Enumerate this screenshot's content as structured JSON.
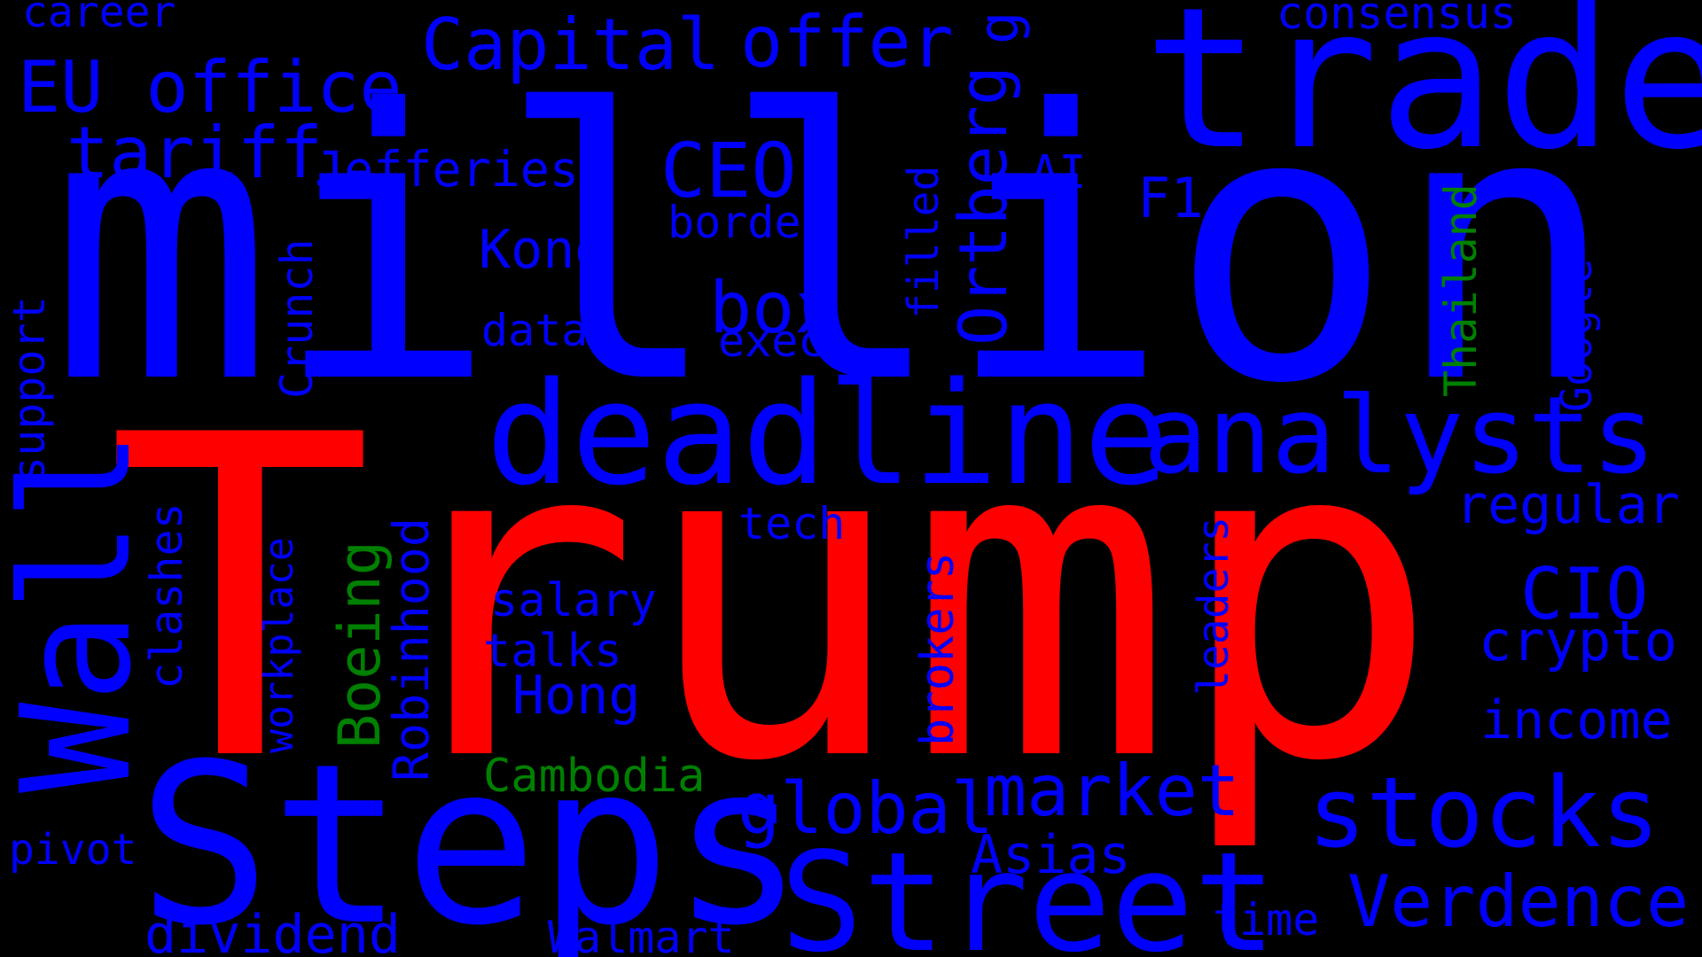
{
  "colors": {
    "background": "#000000",
    "blue": "#0000ff",
    "red": "#ff0000",
    "green": "#008000"
  },
  "words": [
    {
      "key": "trump",
      "text": "Trump",
      "color": "red"
    },
    {
      "key": "million",
      "text": "million",
      "color": "blue"
    },
    {
      "key": "trade",
      "text": "trade",
      "color": "blue"
    },
    {
      "key": "steps",
      "text": "Steps",
      "color": "blue"
    },
    {
      "key": "deadline",
      "text": "deadline",
      "color": "blue"
    },
    {
      "key": "street",
      "text": "Street",
      "color": "blue"
    },
    {
      "key": "analysts",
      "text": "analysts",
      "color": "blue"
    },
    {
      "key": "wall",
      "text": "Wall",
      "color": "blue"
    },
    {
      "key": "stocks",
      "text": "stocks",
      "color": "blue"
    },
    {
      "key": "capital",
      "text": "Capital",
      "color": "blue"
    },
    {
      "key": "offer",
      "text": "offer",
      "color": "blue"
    },
    {
      "key": "eu-office",
      "text": "EU office",
      "color": "blue"
    },
    {
      "key": "tariff",
      "text": "tariff",
      "color": "blue"
    },
    {
      "key": "ceo",
      "text": "CEO",
      "color": "blue"
    },
    {
      "key": "box",
      "text": "box",
      "color": "blue"
    },
    {
      "key": "market",
      "text": "market",
      "color": "blue"
    },
    {
      "key": "global",
      "text": "global",
      "color": "blue"
    },
    {
      "key": "verdence",
      "text": "Verdence",
      "color": "blue"
    },
    {
      "key": "cio",
      "text": "CIO",
      "color": "blue"
    },
    {
      "key": "crypto",
      "text": "crypto",
      "color": "blue"
    },
    {
      "key": "income",
      "text": "income",
      "color": "blue"
    },
    {
      "key": "regular",
      "text": "regular",
      "color": "blue"
    },
    {
      "key": "ortberg",
      "text": "Ortberg",
      "color": "blue"
    },
    {
      "key": "boeing",
      "text": "Boeing",
      "color": "green"
    },
    {
      "key": "robinhood",
      "text": "Robinhood",
      "color": "blue"
    },
    {
      "key": "dividend",
      "text": "dividend",
      "color": "blue"
    },
    {
      "key": "asias",
      "text": "Asias",
      "color": "blue"
    },
    {
      "key": "hong",
      "text": "Hong",
      "color": "blue"
    },
    {
      "key": "kong",
      "text": "Kong",
      "color": "blue"
    },
    {
      "key": "jefferies",
      "text": "Jefferies",
      "color": "blue"
    },
    {
      "key": "consensus",
      "text": "consensus",
      "color": "blue"
    },
    {
      "key": "career",
      "text": "career",
      "color": "blue"
    },
    {
      "key": "support",
      "text": "support",
      "color": "blue"
    },
    {
      "key": "crunch",
      "text": "Crunch",
      "color": "blue"
    },
    {
      "key": "clashes",
      "text": "clashes",
      "color": "blue"
    },
    {
      "key": "workplace",
      "text": "workplace",
      "color": "blue"
    },
    {
      "key": "pivot",
      "text": "pivot",
      "color": "blue"
    },
    {
      "key": "cambodia",
      "text": "Cambodia",
      "color": "green"
    },
    {
      "key": "thailand",
      "text": "Thailand",
      "color": "green"
    },
    {
      "key": "google",
      "text": "Google",
      "color": "blue"
    },
    {
      "key": "filled",
      "text": "filled",
      "color": "blue"
    },
    {
      "key": "border",
      "text": "border",
      "color": "blue"
    },
    {
      "key": "data",
      "text": "data",
      "color": "blue"
    },
    {
      "key": "exec",
      "text": "exec",
      "color": "blue"
    },
    {
      "key": "tech",
      "text": "tech",
      "color": "blue"
    },
    {
      "key": "salary",
      "text": "salary",
      "color": "blue"
    },
    {
      "key": "talks",
      "text": "talks",
      "color": "blue"
    },
    {
      "key": "brokers",
      "text": "brokers",
      "color": "blue"
    },
    {
      "key": "leaders",
      "text": "leaders",
      "color": "blue"
    },
    {
      "key": "walmart",
      "text": "Walmart",
      "color": "blue"
    },
    {
      "key": "time",
      "text": "time",
      "color": "blue"
    },
    {
      "key": "ai",
      "text": "AI",
      "color": "blue"
    },
    {
      "key": "f1",
      "text": "F1",
      "color": "blue"
    },
    {
      "key": "g",
      "text": "g",
      "color": "blue"
    }
  ]
}
